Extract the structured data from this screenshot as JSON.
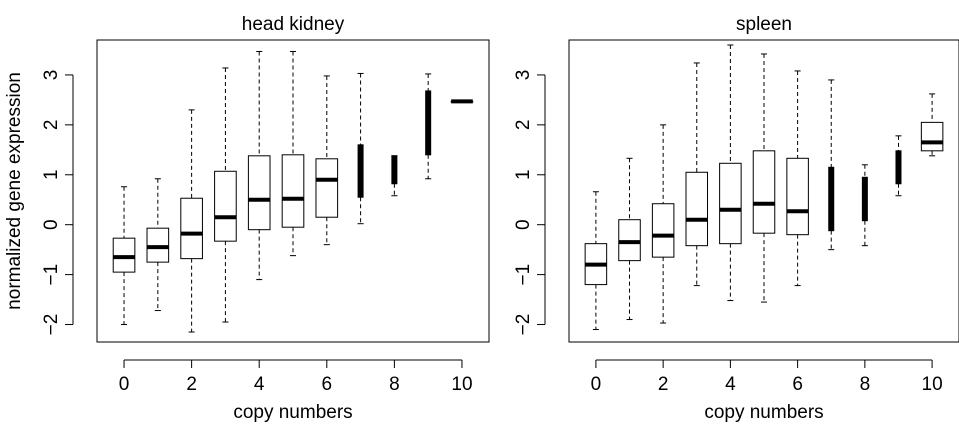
{
  "chart_data": [
    {
      "type": "boxplot",
      "title": "head kidney",
      "xlabel": "copy numbers",
      "ylabel": "normalized gene expression",
      "xlim": [
        -0.8,
        10.8
      ],
      "ylim": [
        -2.35,
        3.7
      ],
      "x_ticks": [
        0,
        2,
        4,
        6,
        8,
        10
      ],
      "y_ticks": [
        -2,
        -1,
        0,
        1,
        2,
        3
      ],
      "y_tick_labels": [
        "−2",
        "−1",
        "0",
        "1",
        "2",
        "3"
      ],
      "series": [
        {
          "x": 0,
          "whisker_low": -2.0,
          "q1": -0.95,
          "median": -0.65,
          "q3": -0.27,
          "whisker_high": 0.76
        },
        {
          "x": 1,
          "whisker_low": -1.72,
          "q1": -0.75,
          "median": -0.45,
          "q3": -0.07,
          "whisker_high": 0.92
        },
        {
          "x": 2,
          "whisker_low": -2.15,
          "q1": -0.68,
          "median": -0.18,
          "q3": 0.53,
          "whisker_high": 2.3
        },
        {
          "x": 3,
          "whisker_low": -1.95,
          "q1": -0.33,
          "median": 0.15,
          "q3": 1.07,
          "whisker_high": 3.14
        },
        {
          "x": 4,
          "whisker_low": -1.1,
          "q1": -0.1,
          "median": 0.5,
          "q3": 1.38,
          "whisker_high": 3.47
        },
        {
          "x": 5,
          "whisker_low": -0.62,
          "q1": -0.05,
          "median": 0.52,
          "q3": 1.4,
          "whisker_high": 3.47
        },
        {
          "x": 6,
          "whisker_low": -0.4,
          "q1": 0.15,
          "median": 0.9,
          "q3": 1.32,
          "whisker_high": 2.98
        },
        {
          "x": 7,
          "whisker_low": 0.02,
          "q1": 0.55,
          "median": 1.0,
          "q3": 1.6,
          "whisker_high": 3.03
        },
        {
          "x": 8,
          "whisker_low": 0.58,
          "q1": 0.82,
          "median": 1.0,
          "q3": 1.38,
          "whisker_high": 1.38
        },
        {
          "x": 9,
          "whisker_low": 0.92,
          "q1": 1.4,
          "median": 2.4,
          "q3": 2.68,
          "whisker_high": 3.02
        },
        {
          "x": 10,
          "whisker_low": 2.47,
          "q1": 2.47,
          "median": 2.47,
          "q3": 2.47,
          "whisker_high": 2.47
        }
      ]
    },
    {
      "type": "boxplot",
      "title": "spleen",
      "xlabel": "copy numbers",
      "ylabel": "",
      "xlim": [
        -0.8,
        10.8
      ],
      "ylim": [
        -2.35,
        3.7
      ],
      "x_ticks": [
        0,
        2,
        4,
        6,
        8,
        10
      ],
      "y_ticks": [
        -2,
        -1,
        0,
        1,
        2,
        3
      ],
      "y_tick_labels": [
        "−2",
        "−1",
        "0",
        "1",
        "2",
        "3"
      ],
      "series": [
        {
          "x": 0,
          "whisker_low": -2.1,
          "q1": -1.2,
          "median": -0.8,
          "q3": -0.38,
          "whisker_high": 0.66
        },
        {
          "x": 1,
          "whisker_low": -1.9,
          "q1": -0.72,
          "median": -0.35,
          "q3": 0.1,
          "whisker_high": 1.33
        },
        {
          "x": 2,
          "whisker_low": -1.97,
          "q1": -0.65,
          "median": -0.22,
          "q3": 0.42,
          "whisker_high": 2.0
        },
        {
          "x": 3,
          "whisker_low": -1.22,
          "q1": -0.42,
          "median": 0.1,
          "q3": 1.05,
          "whisker_high": 3.24
        },
        {
          "x": 4,
          "whisker_low": -1.52,
          "q1": -0.38,
          "median": 0.3,
          "q3": 1.23,
          "whisker_high": 3.6
        },
        {
          "x": 5,
          "whisker_low": -1.55,
          "q1": -0.17,
          "median": 0.42,
          "q3": 1.48,
          "whisker_high": 3.42
        },
        {
          "x": 6,
          "whisker_low": -1.22,
          "q1": -0.2,
          "median": 0.27,
          "q3": 1.33,
          "whisker_high": 3.08
        },
        {
          "x": 7,
          "whisker_low": -0.5,
          "q1": -0.12,
          "median": 0.43,
          "q3": 1.15,
          "whisker_high": 2.9
        },
        {
          "x": 8,
          "whisker_low": -0.42,
          "q1": 0.08,
          "median": 0.58,
          "q3": 0.95,
          "whisker_high": 1.2
        },
        {
          "x": 9,
          "whisker_low": 0.58,
          "q1": 0.82,
          "median": 1.0,
          "q3": 1.48,
          "whisker_high": 1.78
        },
        {
          "x": 10,
          "whisker_low": 1.38,
          "q1": 1.48,
          "median": 1.65,
          "q3": 2.05,
          "whisker_high": 2.62
        }
      ]
    }
  ]
}
